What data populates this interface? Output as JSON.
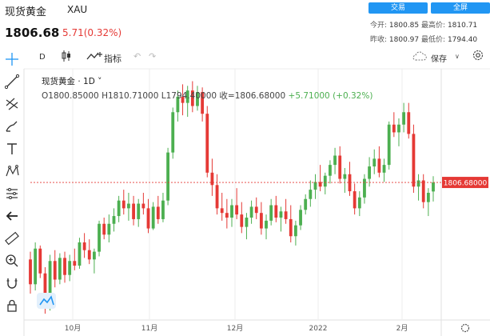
{
  "header": {
    "title": "现货黄金",
    "symbol": "XAU",
    "trade_button": "交易",
    "fullscreen_button": "全屏",
    "price": "1806.68",
    "change": "5.71(0.32%)"
  },
  "stats": {
    "open_label": "今开:",
    "open_value": "1800.85",
    "high_label": "最高价:",
    "high_value": "1810.71",
    "prev_close_label": "昨收:",
    "prev_close_value": "1800.97",
    "low_label": "最低价:",
    "low_value": "1794.40"
  },
  "toolbar": {
    "interval": "D",
    "indicators_label": "指标",
    "save_label": "保存"
  },
  "legend": {
    "line1": "现货黄金 · 1D ˅",
    "line2_ohlc": "O1800.85000  H1810.71000  L1794.40000  收=1806.68000",
    "line2_change": "+5.71000 (+0.32%)"
  },
  "chart_data": {
    "type": "candlestick",
    "x_ticks": [
      "10月",
      "11月",
      "12月",
      "2022",
      "2月"
    ],
    "y_price_label": "1806.68000",
    "last_price": 1806.68,
    "colors": {
      "up": "#4caf50",
      "down": "#e53935",
      "last_line": "#e53935",
      "grid": "#eeeeee"
    },
    "ylim": [
      1720,
      1880
    ],
    "candles": [
      [
        1757,
        1762,
        1735,
        1741
      ],
      [
        1741,
        1768,
        1737,
        1764
      ],
      [
        1764,
        1766,
        1745,
        1748
      ],
      [
        1748,
        1752,
        1722,
        1726
      ],
      [
        1726,
        1760,
        1724,
        1756
      ],
      [
        1756,
        1763,
        1739,
        1744
      ],
      [
        1744,
        1761,
        1741,
        1758
      ],
      [
        1758,
        1762,
        1742,
        1747
      ],
      [
        1747,
        1760,
        1743,
        1756
      ],
      [
        1756,
        1764,
        1750,
        1753
      ],
      [
        1753,
        1771,
        1751,
        1768
      ],
      [
        1768,
        1774,
        1758,
        1763
      ],
      [
        1763,
        1770,
        1754,
        1757
      ],
      [
        1757,
        1764,
        1748,
        1762
      ],
      [
        1762,
        1782,
        1759,
        1780
      ],
      [
        1780,
        1784,
        1770,
        1773
      ],
      [
        1773,
        1786,
        1768,
        1780
      ],
      [
        1780,
        1790,
        1775,
        1785
      ],
      [
        1785,
        1798,
        1781,
        1795
      ],
      [
        1795,
        1802,
        1786,
        1790
      ],
      [
        1790,
        1800,
        1782,
        1793
      ],
      [
        1793,
        1798,
        1779,
        1783
      ],
      [
        1783,
        1796,
        1778,
        1793
      ],
      [
        1793,
        1800,
        1786,
        1790
      ],
      [
        1790,
        1796,
        1774,
        1777
      ],
      [
        1777,
        1794,
        1776,
        1791
      ],
      [
        1791,
        1798,
        1780,
        1783
      ],
      [
        1783,
        1800,
        1781,
        1795
      ],
      [
        1795,
        1829,
        1792,
        1826
      ],
      [
        1826,
        1855,
        1822,
        1852
      ],
      [
        1852,
        1866,
        1846,
        1862
      ],
      [
        1862,
        1870,
        1850,
        1858
      ],
      [
        1858,
        1869,
        1849,
        1866
      ],
      [
        1866,
        1872,
        1852,
        1856
      ],
      [
        1856,
        1869,
        1853,
        1865
      ],
      [
        1865,
        1868,
        1846,
        1851
      ],
      [
        1851,
        1856,
        1810,
        1813
      ],
      [
        1813,
        1822,
        1798,
        1805
      ],
      [
        1805,
        1812,
        1786,
        1790
      ],
      [
        1790,
        1800,
        1782,
        1787
      ],
      [
        1787,
        1796,
        1777,
        1784
      ],
      [
        1784,
        1796,
        1778,
        1792
      ],
      [
        1792,
        1803,
        1783,
        1786
      ],
      [
        1786,
        1794,
        1774,
        1778
      ],
      [
        1778,
        1787,
        1770,
        1784
      ],
      [
        1784,
        1795,
        1780,
        1791
      ],
      [
        1791,
        1797,
        1783,
        1787
      ],
      [
        1787,
        1794,
        1773,
        1777
      ],
      [
        1777,
        1786,
        1770,
        1782
      ],
      [
        1782,
        1796,
        1779,
        1792
      ],
      [
        1792,
        1798,
        1781,
        1784
      ],
      [
        1784,
        1791,
        1775,
        1788
      ],
      [
        1788,
        1796,
        1780,
        1783
      ],
      [
        1783,
        1792,
        1768,
        1772
      ],
      [
        1772,
        1782,
        1766,
        1779
      ],
      [
        1779,
        1792,
        1776,
        1789
      ],
      [
        1789,
        1799,
        1786,
        1796
      ],
      [
        1796,
        1808,
        1791,
        1802
      ],
      [
        1802,
        1812,
        1796,
        1807
      ],
      [
        1807,
        1818,
        1801,
        1804
      ],
      [
        1804,
        1813,
        1799,
        1811
      ],
      [
        1811,
        1821,
        1806,
        1818
      ],
      [
        1818,
        1829,
        1812,
        1824
      ],
      [
        1824,
        1830,
        1806,
        1809
      ],
      [
        1809,
        1816,
        1800,
        1812
      ],
      [
        1812,
        1820,
        1798,
        1801
      ],
      [
        1801,
        1806,
        1786,
        1790
      ],
      [
        1790,
        1801,
        1785,
        1797
      ],
      [
        1797,
        1812,
        1793,
        1809
      ],
      [
        1809,
        1823,
        1804,
        1817
      ],
      [
        1817,
        1828,
        1812,
        1822
      ],
      [
        1822,
        1830,
        1810,
        1813
      ],
      [
        1813,
        1822,
        1807,
        1818
      ],
      [
        1818,
        1846,
        1815,
        1844
      ],
      [
        1844,
        1852,
        1836,
        1839
      ],
      [
        1839,
        1848,
        1830,
        1844
      ],
      [
        1844,
        1858,
        1839,
        1852
      ],
      [
        1852,
        1858,
        1835,
        1838
      ],
      [
        1838,
        1844,
        1800,
        1804
      ],
      [
        1804,
        1812,
        1795,
        1808
      ],
      [
        1808,
        1812,
        1790,
        1794
      ],
      [
        1794,
        1803,
        1785,
        1800
      ],
      [
        1800.85,
        1810.71,
        1794.4,
        1806.68
      ]
    ]
  }
}
